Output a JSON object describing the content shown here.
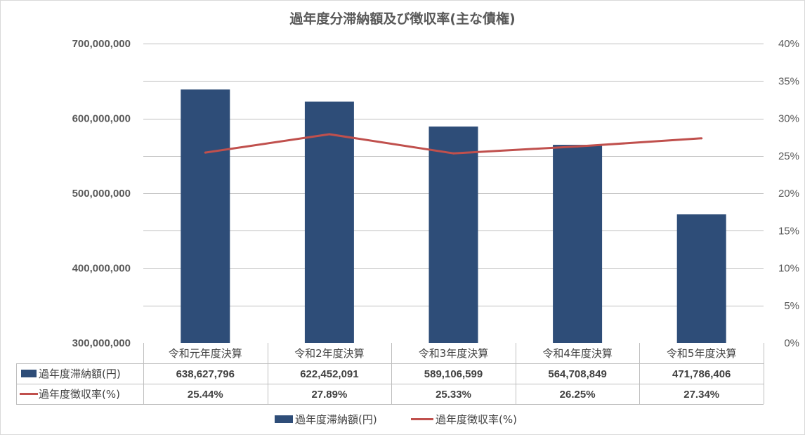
{
  "chart_data": {
    "type": "bar",
    "title": "過年度分滞納額及び徴収率(主な債権)",
    "categories": [
      "令和元年度決算",
      "令和2年度決算",
      "令和3年度決算",
      "令和4年度決算",
      "令和5年度決算"
    ],
    "series": [
      {
        "name": "過年度滞納額(円)",
        "type": "bar",
        "axis": "left",
        "color": "#2e4d78",
        "values": [
          638627796,
          622452091,
          589106599,
          564708849,
          471786406
        ],
        "labels": [
          "638,627,796",
          "622,452,091",
          "589,106,599",
          "564,708,849",
          "471,786,406"
        ]
      },
      {
        "name": "過年度徴収率(%)",
        "type": "line",
        "axis": "right",
        "color": "#c0504d",
        "values": [
          25.44,
          27.89,
          25.33,
          26.25,
          27.34
        ],
        "labels": [
          "25.44%",
          "27.89%",
          "25.33%",
          "26.25%",
          "27.34%"
        ]
      }
    ],
    "y_left": {
      "min": 300000000,
      "max": 700000000,
      "ticks": [
        300000000,
        400000000,
        500000000,
        600000000,
        700000000
      ],
      "tick_labels": [
        "300,000,000",
        "400,000,000",
        "500,000,000",
        "600,000,000",
        "700,000,000"
      ]
    },
    "y_right": {
      "min": 0,
      "max": 40,
      "ticks": [
        0,
        5,
        10,
        15,
        20,
        25,
        30,
        35,
        40
      ],
      "tick_labels": [
        "0%",
        "5%",
        "10%",
        "15%",
        "20%",
        "25%",
        "30%",
        "35%",
        "40%"
      ]
    },
    "grid": true,
    "data_table": true,
    "legend_position": "bottom"
  }
}
